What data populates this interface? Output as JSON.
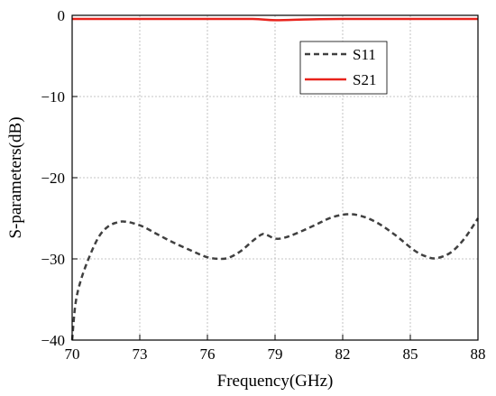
{
  "chart_data": {
    "type": "line",
    "title": "",
    "xlabel": "Frequency(GHz)",
    "ylabel": "S-parameters(dB)",
    "xlim": [
      70,
      88
    ],
    "ylim": [
      -40,
      0
    ],
    "xticks": [
      70,
      73,
      76,
      79,
      82,
      85,
      88
    ],
    "yticks": [
      0,
      -10,
      -20,
      -30,
      -40
    ],
    "xtick_labels": [
      "70",
      "73",
      "76",
      "79",
      "82",
      "85",
      "88"
    ],
    "ytick_labels": [
      "0",
      "−10",
      "−20",
      "−30",
      "−40"
    ],
    "grid": true,
    "legend_position": "top-right",
    "series": [
      {
        "name": "S11",
        "color": "#404040",
        "style": "dashed",
        "points": [
          [
            70.0,
            -40.0
          ],
          [
            70.15,
            -35.5
          ],
          [
            70.4,
            -32.5
          ],
          [
            70.8,
            -29.5
          ],
          [
            71.2,
            -27.2
          ],
          [
            71.6,
            -26.0
          ],
          [
            72.0,
            -25.5
          ],
          [
            72.3,
            -25.4
          ],
          [
            72.7,
            -25.6
          ],
          [
            73.2,
            -26.1
          ],
          [
            73.8,
            -27.0
          ],
          [
            74.5,
            -28.0
          ],
          [
            75.3,
            -29.0
          ],
          [
            76.0,
            -29.8
          ],
          [
            76.6,
            -30.0
          ],
          [
            77.0,
            -29.8
          ],
          [
            77.5,
            -29.0
          ],
          [
            78.0,
            -27.8
          ],
          [
            78.4,
            -27.0
          ],
          [
            78.6,
            -27.0
          ],
          [
            79.0,
            -27.5
          ],
          [
            79.4,
            -27.4
          ],
          [
            80.0,
            -26.8
          ],
          [
            80.8,
            -25.8
          ],
          [
            81.5,
            -24.9
          ],
          [
            82.2,
            -24.5
          ],
          [
            82.8,
            -24.7
          ],
          [
            83.5,
            -25.5
          ],
          [
            84.3,
            -27.0
          ],
          [
            85.2,
            -29.0
          ],
          [
            85.8,
            -29.8
          ],
          [
            86.2,
            -29.9
          ],
          [
            86.8,
            -29.2
          ],
          [
            87.4,
            -27.5
          ],
          [
            88.0,
            -25.0
          ]
        ]
      },
      {
        "name": "S21",
        "color": "#e8231c",
        "style": "solid",
        "points": [
          [
            70.0,
            -0.45
          ],
          [
            72.0,
            -0.45
          ],
          [
            74.0,
            -0.45
          ],
          [
            76.0,
            -0.45
          ],
          [
            78.0,
            -0.45
          ],
          [
            79.0,
            -0.6
          ],
          [
            80.5,
            -0.5
          ],
          [
            82.0,
            -0.45
          ],
          [
            84.0,
            -0.45
          ],
          [
            86.0,
            -0.45
          ],
          [
            88.0,
            -0.45
          ]
        ]
      }
    ]
  }
}
